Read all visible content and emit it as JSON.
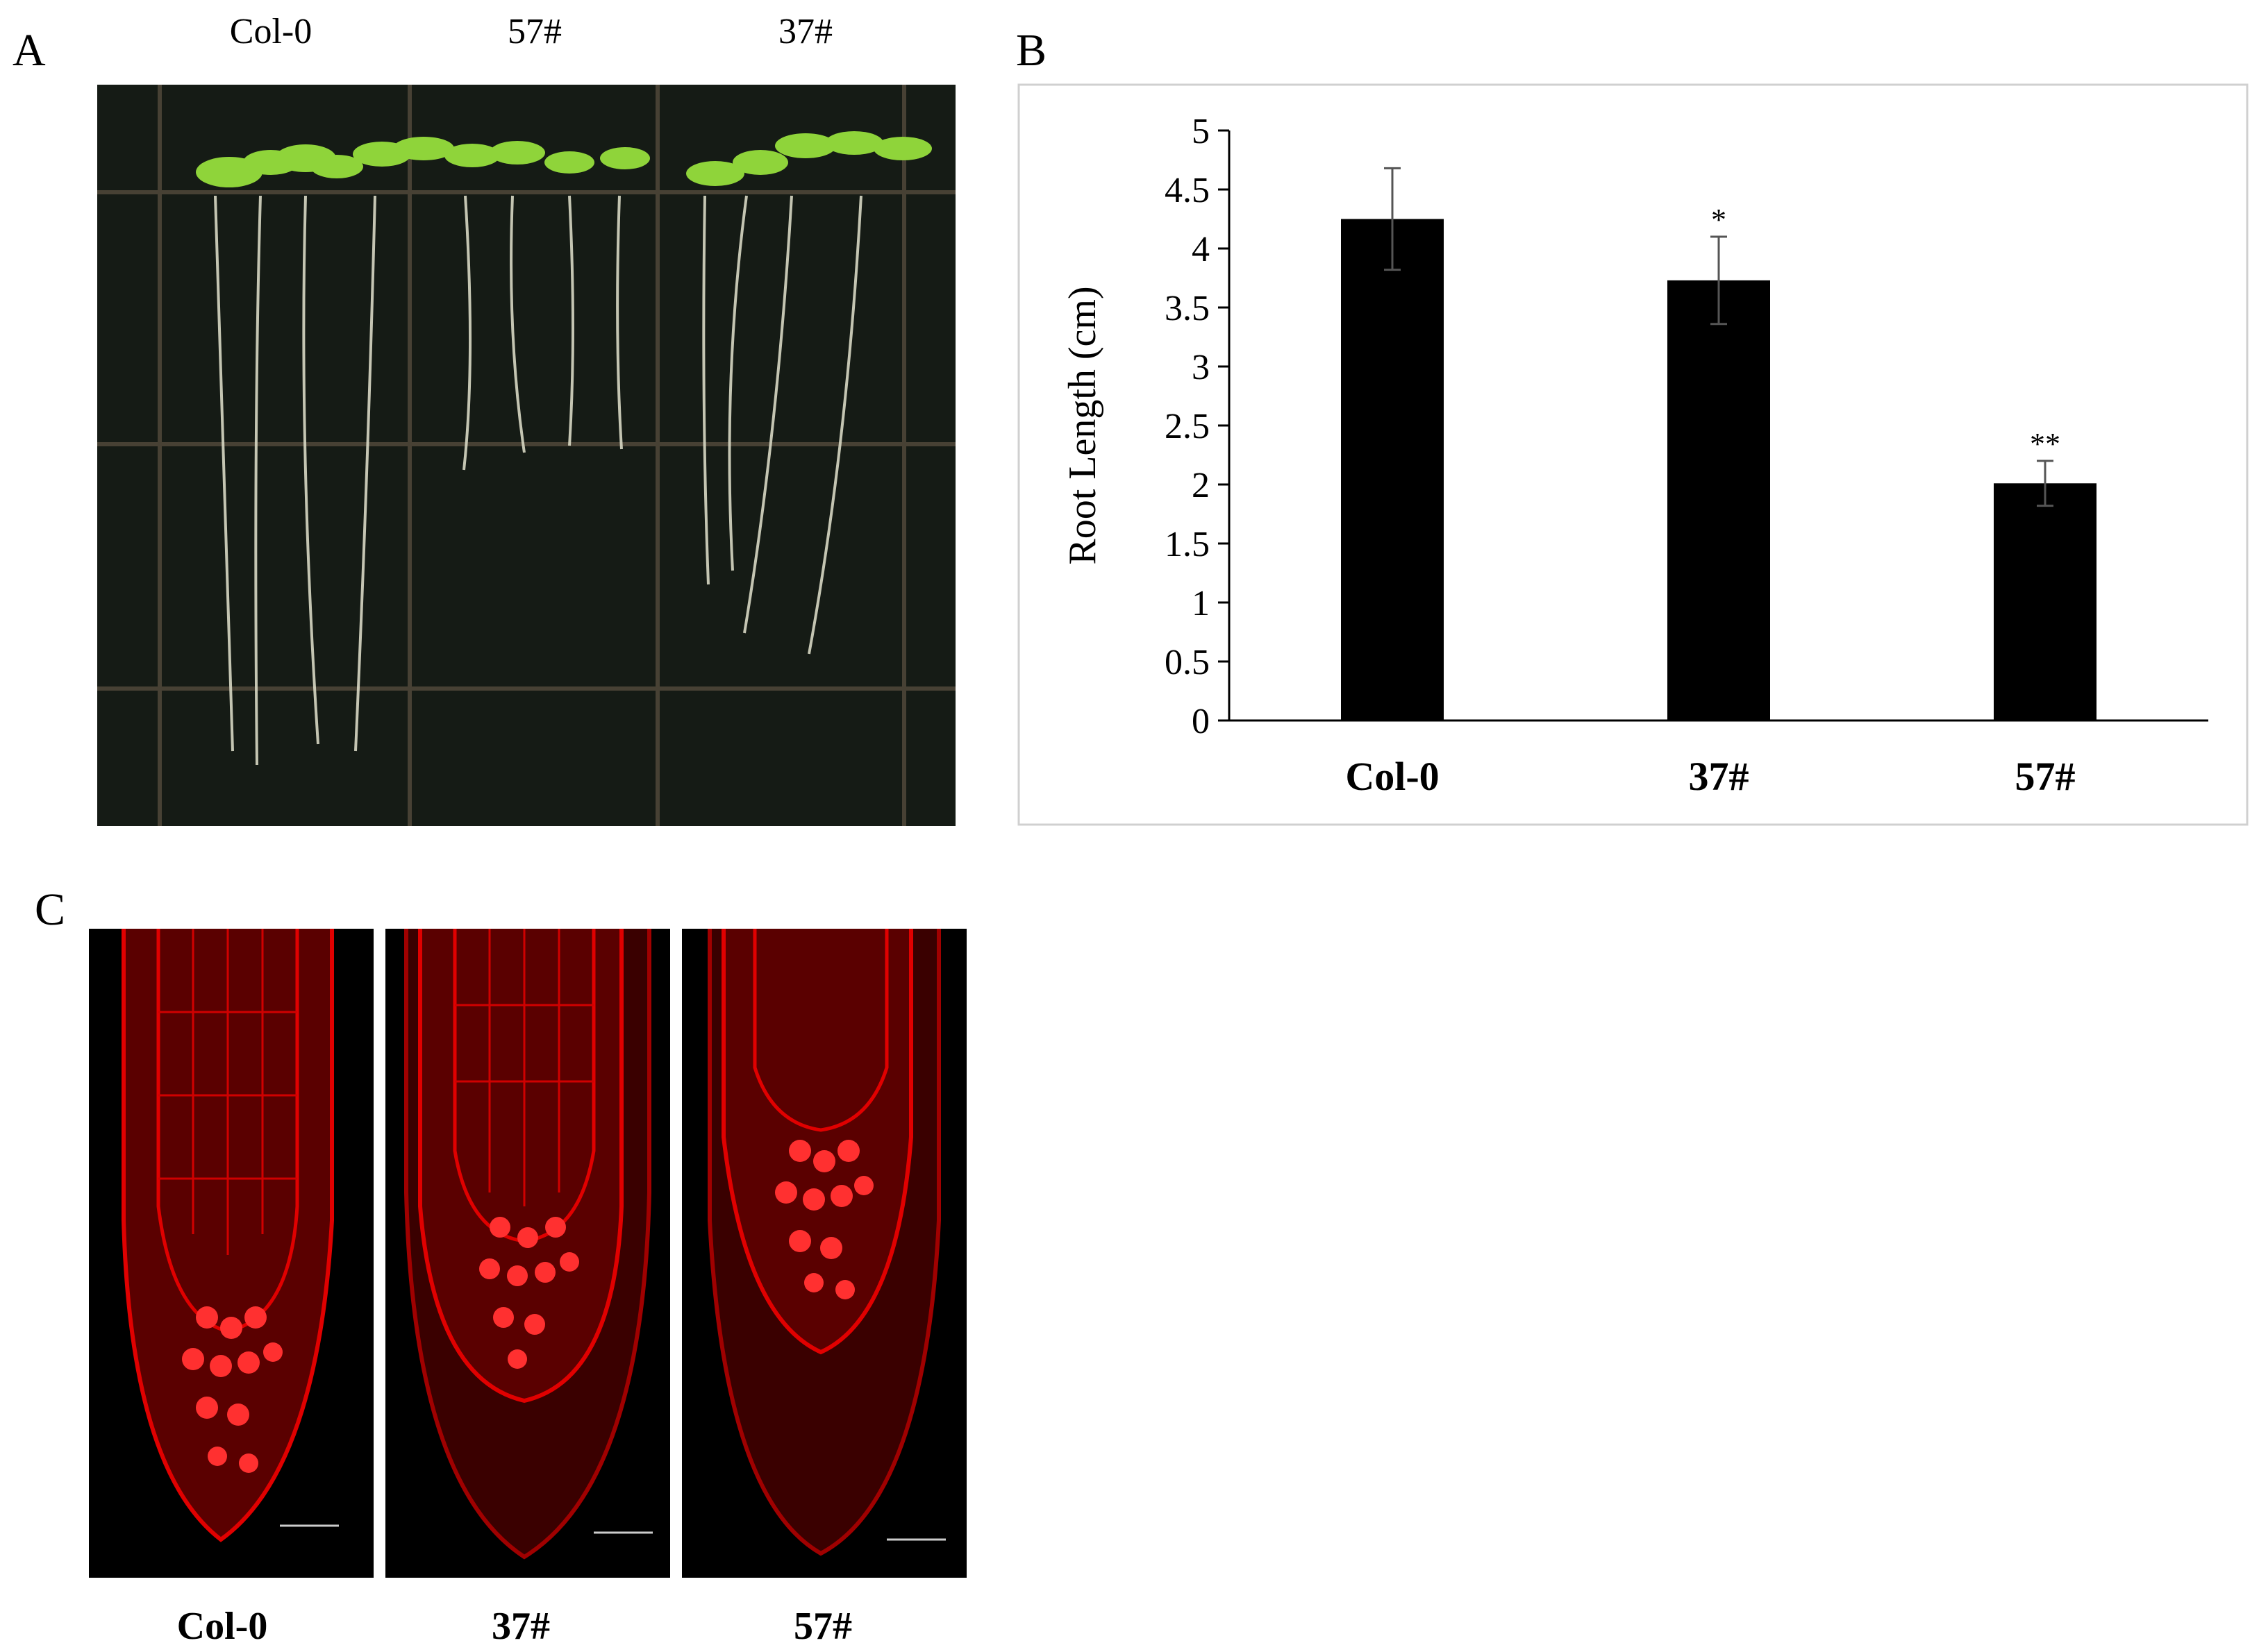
{
  "panels": {
    "a": {
      "letter": "A",
      "columns": [
        "Col-0",
        "57#",
        "37#"
      ]
    },
    "b": {
      "letter": "B"
    },
    "c": {
      "letter": "C",
      "labels": [
        "Col-0",
        "37#",
        "57#"
      ]
    }
  },
  "chart_data": {
    "type": "bar",
    "title": "",
    "xlabel": "",
    "ylabel": "Root Length (cm)",
    "categories": [
      "Col-0",
      "37#",
      "57#"
    ],
    "values": [
      4.25,
      3.73,
      2.01
    ],
    "errors": [
      0.43,
      0.37,
      0.19
    ],
    "significance": [
      "",
      "*",
      "**"
    ],
    "ylim": [
      0,
      5
    ],
    "yticks": [
      "0",
      "0.5",
      "1",
      "1.5",
      "2",
      "2.5",
      "3",
      "3.5",
      "4",
      "4.5",
      "5"
    ],
    "bar_color": "#000000",
    "grid": false,
    "legend": false
  }
}
